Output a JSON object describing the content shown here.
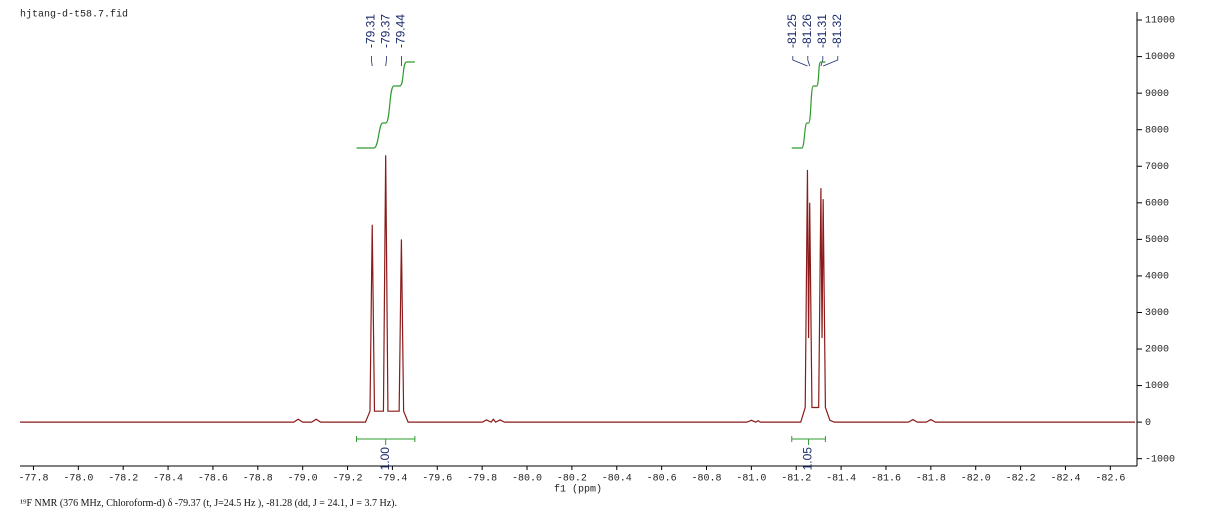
{
  "chart_data": {
    "type": "line",
    "title": "hjtang-d-t58.7.fid",
    "x_label": "f1 (ppm)",
    "caption": "¹⁹F NMR (376 MHz, Chloroform-d) δ -79.37 (t, J=24.5 Hz ), -81.28 (dd, J = 24.1, J = 3.7 Hz).",
    "color": "#8b1a1a",
    "integral_color": "#2e9a2e",
    "x": [
      -77.74,
      -78.96,
      -78.98,
      -79.0,
      -79.04,
      -79.06,
      -79.08,
      -79.28,
      -79.3,
      -79.31,
      -79.32,
      -79.36,
      -79.37,
      -79.38,
      -79.43,
      -79.44,
      -79.45,
      -79.47,
      -79.8,
      -79.82,
      -79.84,
      -79.85,
      -79.86,
      -79.88,
      -79.9,
      -80.98,
      -81.0,
      -81.02,
      -81.03,
      -81.04,
      -81.22,
      -81.24,
      -81.25,
      -81.255,
      -81.26,
      -81.27,
      -81.3,
      -81.31,
      -81.315,
      -81.32,
      -81.33,
      -81.35,
      -81.37,
      -81.7,
      -81.72,
      -81.74,
      -81.78,
      -81.8,
      -81.82,
      -82.71
    ],
    "values": [
      0,
      0,
      80,
      0,
      0,
      80,
      0,
      0,
      300,
      5400,
      300,
      300,
      7300,
      300,
      300,
      5000,
      300,
      0,
      0,
      60,
      0,
      80,
      0,
      60,
      0,
      0,
      50,
      0,
      40,
      0,
      0,
      400,
      6900,
      2300,
      6000,
      400,
      400,
      6400,
      2300,
      6100,
      400,
      50,
      0,
      0,
      70,
      0,
      0,
      70,
      0,
      0
    ],
    "peak_labels": [
      [
        -79.31,
        -79.37,
        -79.44
      ],
      [
        -81.25,
        -81.26,
        -81.31,
        -81.32
      ]
    ],
    "integrals": {
      "ranges": [
        [
          -79.24,
          -79.5
        ],
        [
          -81.18,
          -81.33
        ]
      ],
      "values": [
        1,
        1.05
      ],
      "value_labels": [
        "1.00",
        "1.05"
      ]
    },
    "xlim": [
      -77.74,
      -82.71
    ],
    "xticks": [
      -77.8,
      {
        "value": -78,
        "label": "-78.0"
      },
      -78.2,
      -78.4,
      -78.6,
      -78.8,
      {
        "value": -79,
        "label": "-79.0"
      },
      -79.2,
      -79.4,
      -79.6,
      -79.8,
      {
        "value": -80,
        "label": "-80.0"
      },
      -80.2,
      -80.4,
      -80.6,
      -80.8,
      {
        "value": -81,
        "label": "-81.0"
      },
      -81.2,
      -81.4,
      -81.6,
      -81.8,
      {
        "value": -82,
        "label": "-82.0"
      },
      -82.2,
      -82.4,
      -82.6
    ],
    "ylim": [
      -1200,
      11220
    ],
    "yticks": [
      11000,
      10000,
      9000,
      8000,
      7000,
      6000,
      5000,
      4000,
      3000,
      2000,
      1000,
      0,
      -1000
    ]
  }
}
